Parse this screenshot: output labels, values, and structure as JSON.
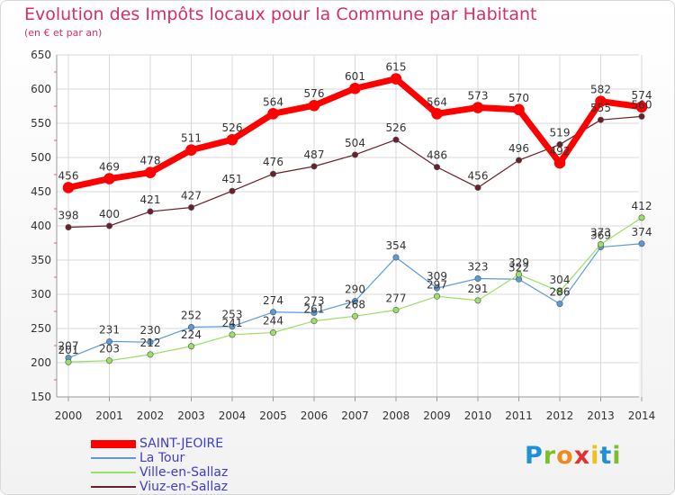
{
  "chart_data": {
    "type": "line",
    "title": "Evolution des Impôts locaux pour la Commune par Habitant",
    "subtitle": "(en € et par an)",
    "categories": [
      "2000",
      "2001",
      "2002",
      "2003",
      "2004",
      "2005",
      "2006",
      "2007",
      "2008",
      "2009",
      "2010",
      "2011",
      "2012",
      "2013",
      "2014"
    ],
    "ylim": [
      150,
      650
    ],
    "yticks": [
      150,
      200,
      250,
      300,
      350,
      400,
      450,
      500,
      550,
      600,
      650
    ],
    "grid": true,
    "legend_position": "bottom-left",
    "series": [
      {
        "name": "SAINT-JEOIRE",
        "color": "#ff0000",
        "values": [
          456,
          469,
          478,
          511,
          526,
          564,
          576,
          601,
          615,
          564,
          573,
          570,
          492,
          582,
          574
        ]
      },
      {
        "name": "La Tour",
        "color": "#5b9bd5",
        "values": [
          207,
          231,
          230,
          252,
          253,
          274,
          273,
          290,
          354,
          309,
          323,
          322,
          286,
          369,
          374
        ]
      },
      {
        "name": "Ville-en-Sallaz",
        "color": "#99e066",
        "values": [
          201,
          203,
          212,
          224,
          241,
          244,
          261,
          268,
          277,
          297,
          291,
          329,
          304,
          373,
          412
        ]
      },
      {
        "name": "Viuz-en-Sallaz",
        "color": "#6b1f2a",
        "values": [
          398,
          400,
          421,
          427,
          451,
          476,
          487,
          504,
          526,
          486,
          456,
          496,
          519,
          555,
          560
        ]
      }
    ]
  },
  "logo": {
    "letters": [
      "P",
      "r",
      "o",
      "x",
      "i",
      "t",
      "i"
    ],
    "colors": [
      "#1e90d6",
      "#7bbf2e",
      "#f08a1d",
      "#e53030",
      "#f0c01d",
      "#1e90d6",
      "#7bbf2e"
    ]
  }
}
